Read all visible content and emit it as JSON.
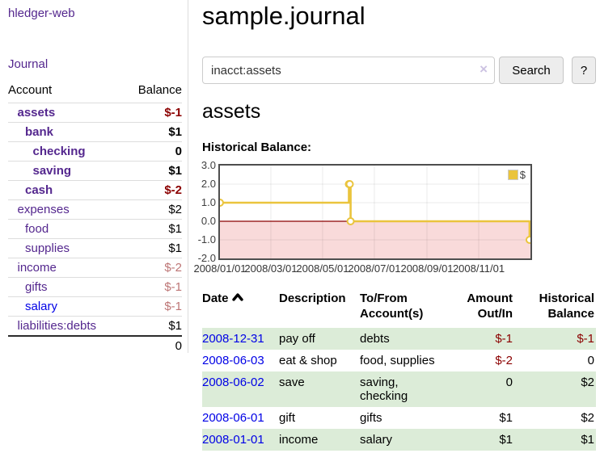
{
  "app": {
    "brand": "hledger-web",
    "nav_journal": "Journal"
  },
  "colors": {
    "link_purple": "#54278e",
    "link_blue": "#0000e6",
    "negative_strong": "#8b0000",
    "negative_soft": "#bd7575",
    "row_stripe_green": "#dcecd8",
    "chart_series_gold": "#eac43d",
    "chart_negative_region": "#f9dada",
    "chart_zero_line": "#8b0000"
  },
  "sidebar": {
    "headers": {
      "account": "Account",
      "balance": "Balance"
    },
    "rows": [
      {
        "name": "assets",
        "indent": 1,
        "bold": true,
        "link": "purple",
        "balance": "$-1",
        "tone": "neg-strong"
      },
      {
        "name": "bank",
        "indent": 2,
        "bold": true,
        "link": "purple",
        "balance": "$1",
        "tone": ""
      },
      {
        "name": "checking",
        "indent": 3,
        "bold": true,
        "link": "purple",
        "balance": "0",
        "tone": ""
      },
      {
        "name": "saving",
        "indent": 3,
        "bold": true,
        "link": "purple",
        "balance": "$1",
        "tone": ""
      },
      {
        "name": "cash",
        "indent": 2,
        "bold": true,
        "link": "purple",
        "balance": "$-2",
        "tone": "neg-strong"
      },
      {
        "name": "expenses",
        "indent": 1,
        "bold": false,
        "link": "purple",
        "balance": "$2",
        "tone": ""
      },
      {
        "name": "food",
        "indent": 2,
        "bold": false,
        "link": "purple",
        "balance": "$1",
        "tone": ""
      },
      {
        "name": "supplies",
        "indent": 2,
        "bold": false,
        "link": "purple",
        "balance": "$1",
        "tone": ""
      },
      {
        "name": "income",
        "indent": 1,
        "bold": false,
        "link": "purple",
        "balance": "$-2",
        "tone": "neg-soft"
      },
      {
        "name": "gifts",
        "indent": 2,
        "bold": false,
        "link": "purple",
        "balance": "$-1",
        "tone": "neg-soft"
      },
      {
        "name": "salary",
        "indent": 2,
        "bold": false,
        "link": "blue",
        "balance": "$-1",
        "tone": "neg-soft"
      },
      {
        "name": "liabilities:debts",
        "indent": 1,
        "bold": false,
        "link": "purple",
        "balance": "$1",
        "tone": ""
      }
    ],
    "total": "0"
  },
  "header": {
    "title": "sample.journal"
  },
  "search": {
    "query": "inacct:assets",
    "clear_icon": "×",
    "button_label": "Search",
    "help_label": "?"
  },
  "account_page": {
    "heading": "assets"
  },
  "chart_data": {
    "type": "line",
    "title": "Historical Balance:",
    "step": true,
    "xlim": [
      "2008-01-01",
      "2009-01-01"
    ],
    "ylim": [
      -2,
      3
    ],
    "x_ticks": [
      {
        "label": "2008/01/01",
        "date": "2008-01-01"
      },
      {
        "label": "2008/03/01",
        "date": "2008-03-01"
      },
      {
        "label": "2008/05/01",
        "date": "2008-05-01"
      },
      {
        "label": "2008/07/01",
        "date": "2008-07-01"
      },
      {
        "label": "2008/09/01",
        "date": "2008-09-01"
      },
      {
        "label": "2008/11/01",
        "date": "2008-11-01"
      }
    ],
    "y_ticks": [
      {
        "label": "3.0",
        "value": 3
      },
      {
        "label": "2.0",
        "value": 2
      },
      {
        "label": "1.0",
        "value": 1
      },
      {
        "label": "0.0",
        "value": 0
      },
      {
        "label": "-1.0",
        "value": -1
      },
      {
        "label": "-2.0",
        "value": -2
      }
    ],
    "series": [
      {
        "name": "$",
        "color": "#eac43d",
        "points": [
          {
            "date": "2008-01-01",
            "value": 1
          },
          {
            "date": "2008-06-01",
            "value": 2
          },
          {
            "date": "2008-06-02",
            "value": 2
          },
          {
            "date": "2008-06-03",
            "value": 0
          },
          {
            "date": "2008-12-31",
            "value": -1
          }
        ]
      }
    ],
    "legend": {
      "label": "$",
      "position": "top-right"
    },
    "grid": true
  },
  "register": {
    "headers": {
      "date": "Date",
      "description": "Description",
      "tofrom": "To/From Account(s)",
      "amount": "Amount Out/In",
      "balance": "Historical Balance"
    },
    "sort": {
      "column": "date",
      "direction": "asc"
    },
    "rows": [
      {
        "date": "2008-12-31",
        "description": "pay off",
        "tofrom": "debts",
        "amount": "$-1",
        "balance": "$-1"
      },
      {
        "date": "2008-06-03",
        "description": "eat & shop",
        "tofrom": "food, supplies",
        "amount": "$-2",
        "balance": "0"
      },
      {
        "date": "2008-06-02",
        "description": "save",
        "tofrom": "saving, checking",
        "amount": "0",
        "balance": "$2"
      },
      {
        "date": "2008-06-01",
        "description": "gift",
        "tofrom": "gifts",
        "amount": "$1",
        "balance": "$2"
      },
      {
        "date": "2008-01-01",
        "description": "income",
        "tofrom": "salary",
        "amount": "$1",
        "balance": "$1"
      }
    ]
  }
}
